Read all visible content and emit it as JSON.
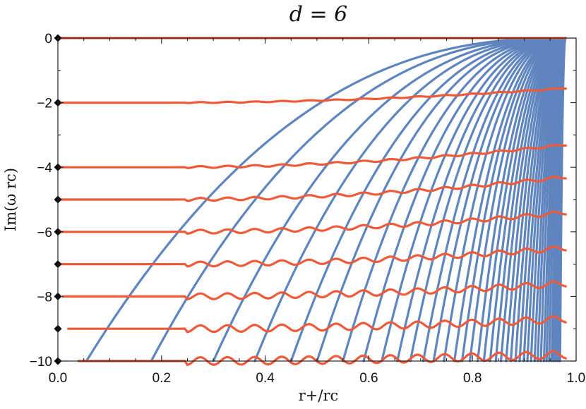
{
  "chart_data": {
    "type": "line",
    "title": "d = 6",
    "xlabel": "r+/rc",
    "ylabel": "Im(ω rc)",
    "xlim": [
      0.0,
      1.0
    ],
    "ylim": [
      -10,
      0
    ],
    "x_ticks": [
      "0.0",
      "0.2",
      "0.4",
      "0.6",
      "0.8",
      "1.0"
    ],
    "y_ticks": [
      "0",
      "−2",
      "−4",
      "−6",
      "−8",
      "−10"
    ],
    "grid": false,
    "colors": {
      "blue": "#5f85bf",
      "red": "#ee5a3a",
      "marker": "#000000"
    },
    "markers": {
      "x": 0.0,
      "y": [
        0,
        -2,
        -4,
        -5,
        -6,
        -7,
        -8,
        -9,
        -10
      ]
    },
    "red_series": [
      {
        "level": 0,
        "x_start": 0.0,
        "end_y": 0.0
      },
      {
        "level": -2,
        "x_start": 0.0,
        "end_y": -1.55
      },
      {
        "level": -4,
        "x_start": 0.0,
        "end_y": -3.3
      },
      {
        "level": -5,
        "x_start": 0.0,
        "end_y": -4.3
      },
      {
        "level": -6,
        "x_start": 0.0,
        "end_y": -5.4
      },
      {
        "level": -7,
        "x_start": 0.0,
        "end_y": -6.5
      },
      {
        "level": -8,
        "x_start": 0.01,
        "end_y": -7.6
      },
      {
        "level": -9,
        "x_start": 0.02,
        "end_y": -8.7
      },
      {
        "level": -10,
        "x_start": 0.04,
        "end_y": -9.8
      }
    ],
    "blue_series": {
      "endpoint": {
        "x": 0.98,
        "y": 0.0
      },
      "x_at_bottom": [
        0.055,
        0.18,
        0.3,
        0.38,
        0.45,
        0.5,
        0.55,
        0.59,
        0.625,
        0.655,
        0.68,
        0.705,
        0.725,
        0.745,
        0.765,
        0.78,
        0.795,
        0.81,
        0.822,
        0.834,
        0.845,
        0.855,
        0.865,
        0.874,
        0.883,
        0.891,
        0.899,
        0.906,
        0.913,
        0.92,
        0.926,
        0.932,
        0.938,
        0.943,
        0.948,
        0.953,
        0.957,
        0.961,
        0.965,
        0.969
      ]
    }
  }
}
